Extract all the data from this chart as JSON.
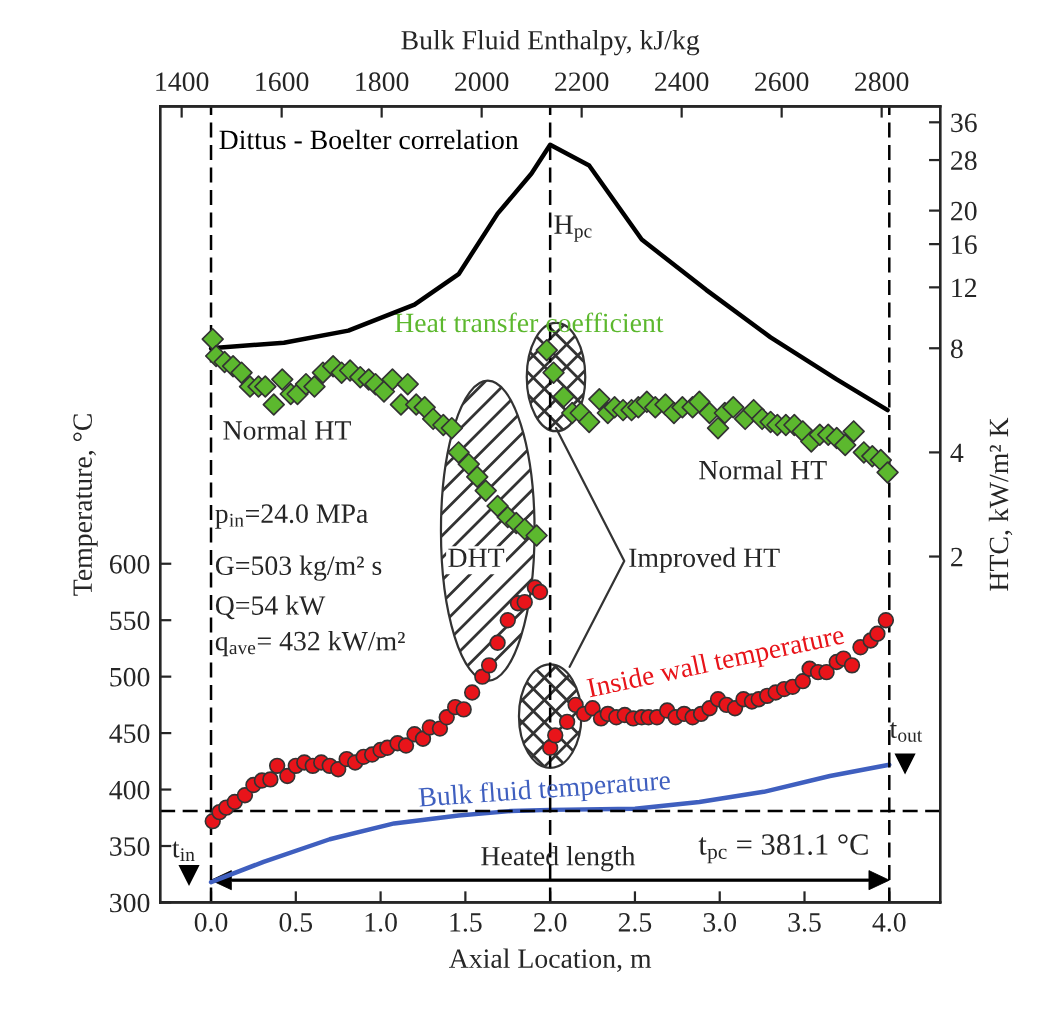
{
  "chart_data": {
    "type": "scatter",
    "xlabel": "Axial Location, m",
    "ylabel": "Temperature, °C",
    "y2label": "HTC, kW/m² K",
    "x2label": "Bulk Fluid Enthalpy, kJ/kg",
    "xlim": [
      -0.3,
      4.3
    ],
    "xticks": [
      {
        "value": 0,
        "label": "0.0"
      },
      {
        "value": 0.5,
        "label": "0.5"
      },
      {
        "value": 1,
        "label": "1.0"
      },
      {
        "value": 1.5,
        "label": "1.5"
      },
      {
        "value": 2,
        "label": "2.0"
      },
      {
        "value": 2.5,
        "label": "2.5"
      },
      {
        "value": 3,
        "label": "3.0"
      },
      {
        "value": 3.5,
        "label": "3.5"
      },
      {
        "value": 4,
        "label": "4.0"
      }
    ],
    "ylim": [
      300,
      1005
    ],
    "yticks": [
      300,
      350,
      400,
      450,
      500,
      550,
      600
    ],
    "y2lim": [
      0.2,
      40
    ],
    "y2ticks": [
      2,
      4,
      8,
      12,
      16,
      20,
      28,
      36
    ],
    "log": "y2",
    "x2lim": [
      1357,
      2917
    ],
    "x2ticks": [
      1400,
      1600,
      1800,
      2000,
      2200,
      2400,
      2600,
      2800
    ],
    "grid": false,
    "legend": false,
    "series": [
      {
        "name": "Dittus - Boelter correlation",
        "type": "line",
        "axis": "y2",
        "color": "#000000",
        "line_style": "solid",
        "marker": "none",
        "x": [
          0.0,
          0.43,
          0.81,
          1.2,
          1.46,
          1.69,
          1.89,
          2.0,
          2.23,
          2.54,
          2.92,
          3.3,
          3.69,
          3.99
        ],
        "values": [
          8.0,
          8.3,
          9.0,
          10.7,
          13.1,
          19.6,
          25.6,
          31,
          27,
          16.5,
          11.8,
          8.6,
          6.5,
          5.3
        ]
      },
      {
        "name": "Heat transfer coefficient",
        "type": "scatter",
        "axis": "y2",
        "color": "#5cb82e",
        "marker": "diamond",
        "x": [
          0.01,
          0.03,
          0.08,
          0.13,
          0.18,
          0.23,
          0.28,
          0.32,
          0.37,
          0.42,
          0.47,
          0.51,
          0.56,
          0.61,
          0.66,
          0.72,
          0.77,
          0.82,
          0.88,
          0.93,
          0.97,
          1.02,
          1.07,
          1.12,
          1.16,
          1.21,
          1.26,
          1.31,
          1.37,
          1.42,
          1.46,
          1.52,
          1.57,
          1.62,
          1.69,
          1.75,
          1.8,
          1.85,
          1.92,
          1.98,
          2.02,
          2.08,
          2.13,
          2.18,
          2.23,
          2.29,
          2.34,
          2.38,
          2.43,
          2.48,
          2.52,
          2.57,
          2.62,
          2.68,
          2.73,
          2.78,
          2.84,
          2.88,
          2.94,
          2.99,
          3.03,
          3.08,
          3.15,
          3.2,
          3.25,
          3.3,
          3.34,
          3.39,
          3.44,
          3.49,
          3.54,
          3.59,
          3.64,
          3.69,
          3.74,
          3.79,
          3.85,
          3.9,
          3.95,
          3.99
        ],
        "values": [
          8.5,
          7.6,
          7.3,
          7.1,
          6.8,
          6.2,
          6.2,
          6.2,
          5.5,
          6.5,
          5.9,
          5.9,
          6.3,
          6.2,
          6.8,
          7.1,
          6.8,
          6.9,
          6.6,
          6.5,
          6.3,
          6.0,
          6.5,
          5.5,
          6.3,
          5.5,
          5.4,
          5.0,
          4.8,
          4.7,
          4.0,
          3.7,
          3.4,
          3.1,
          2.8,
          2.6,
          2.5,
          2.4,
          2.3,
          7.9,
          6.8,
          5.8,
          5.2,
          5.2,
          4.9,
          5.7,
          5.2,
          5.4,
          5.3,
          5.3,
          5.4,
          5.6,
          5.4,
          5.5,
          5.2,
          5.4,
          5.4,
          5.6,
          5.2,
          4.7,
          5.2,
          5.4,
          5.0,
          5.3,
          5.0,
          4.9,
          4.8,
          4.8,
          4.8,
          4.6,
          4.3,
          4.5,
          4.5,
          4.4,
          4.2,
          4.6,
          4.0,
          3.9,
          3.8,
          3.5
        ]
      },
      {
        "name": "Inside wall temperature",
        "type": "scatter",
        "color": "#e8141a",
        "marker": "circle",
        "x": [
          0.01,
          0.05,
          0.09,
          0.14,
          0.2,
          0.25,
          0.3,
          0.35,
          0.39,
          0.45,
          0.5,
          0.55,
          0.6,
          0.65,
          0.7,
          0.75,
          0.8,
          0.85,
          0.9,
          0.95,
          1.0,
          1.04,
          1.1,
          1.15,
          1.2,
          1.25,
          1.29,
          1.35,
          1.39,
          1.44,
          1.49,
          1.54,
          1.6,
          1.64,
          1.69,
          1.75,
          1.81,
          1.85,
          1.91,
          1.94,
          2.0,
          2.03,
          2.1,
          2.15,
          2.2,
          2.25,
          2.3,
          2.34,
          2.39,
          2.44,
          2.49,
          2.54,
          2.58,
          2.63,
          2.69,
          2.74,
          2.79,
          2.84,
          2.89,
          2.94,
          2.99,
          3.04,
          3.09,
          3.14,
          3.19,
          3.23,
          3.28,
          3.33,
          3.38,
          3.43,
          3.49,
          3.53,
          3.58,
          3.63,
          3.69,
          3.73,
          3.78,
          3.83,
          3.89,
          3.93,
          3.98
        ],
        "values": [
          372,
          380,
          384,
          389,
          395,
          404,
          408,
          409,
          421,
          412,
          421,
          424,
          421,
          424,
          421,
          418,
          427,
          424,
          429,
          431,
          435,
          437,
          441,
          439,
          449,
          445,
          455,
          454,
          464,
          473,
          471,
          486,
          500,
          510,
          530,
          550,
          565,
          566,
          579,
          575,
          437,
          448,
          460,
          475,
          467,
          472,
          463,
          467,
          464,
          466,
          463,
          464,
          464,
          464,
          470,
          464,
          467,
          464,
          467,
          472,
          480,
          475,
          472,
          480,
          478,
          480,
          483,
          486,
          489,
          491,
          496,
          507,
          504,
          504,
          513,
          516,
          510,
          526,
          532,
          538,
          550
        ]
      },
      {
        "name": "Bulk fluid temperature",
        "type": "line",
        "color": "#3f5fbf",
        "line_style": "solid",
        "marker": "none",
        "x": [
          0.0,
          0.31,
          0.7,
          1.08,
          1.46,
          1.77,
          2.0,
          2.5,
          2.88,
          3.26,
          3.65,
          4.0
        ],
        "values": [
          318,
          336,
          356,
          370,
          377,
          381,
          382,
          383,
          389,
          398,
          412,
          422
        ]
      }
    ],
    "ref_lines": [
      {
        "axis": "x",
        "value": 0,
        "color": "#000000",
        "line_style": "dashed"
      },
      {
        "axis": "x",
        "value": 2.0,
        "label": "H$_{pc}$",
        "color": "#000000",
        "line_style": "dashed"
      },
      {
        "axis": "x",
        "value": 4.0,
        "color": "#000000",
        "line_style": "dashed"
      },
      {
        "axis": "y",
        "value": 381.1,
        "label": "t$_{pc}$ = 381.1 °C",
        "color": "#000000",
        "line_style": "dashed"
      }
    ],
    "annotations": [
      "Normal HT",
      "Normal HT",
      "p$_{in}$=24.0 MPa",
      "G=503 kg/m² s",
      "Q=54 kW",
      "q$_{ave}$= 432 kW/m²",
      "DHT",
      "Improved HT",
      "t$_{in}$",
      "t$_{out}$",
      "Heated length"
    ]
  }
}
